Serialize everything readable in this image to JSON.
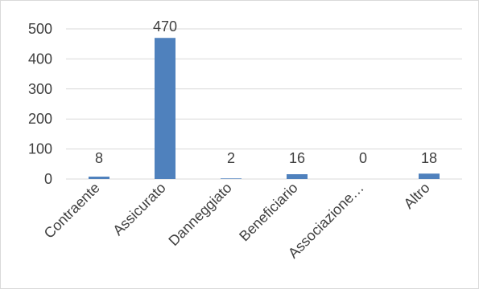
{
  "chart_data": {
    "type": "bar",
    "categories": [
      "Contraente",
      "Assicurato",
      "Danneggiato",
      "Beneficiario",
      "Associazione…",
      "Altro"
    ],
    "values": [
      8,
      470,
      2,
      16,
      0,
      18
    ],
    "data_labels": [
      "8",
      "470",
      "2",
      "16",
      "0",
      "18"
    ],
    "y_ticks": [
      "0",
      "100",
      "200",
      "300",
      "400",
      "500"
    ],
    "ylim": [
      0,
      500
    ],
    "grid": true,
    "bar_color": "#4f81bd",
    "grid_color": "#d9d9d9",
    "axis_color": "#d9d9d9",
    "text_color": "#404040"
  }
}
